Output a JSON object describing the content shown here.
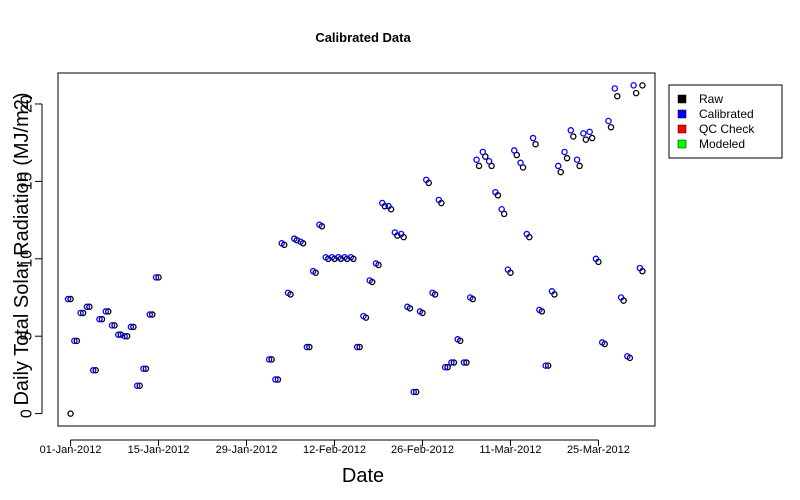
{
  "chart_data": {
    "type": "scatter",
    "title": "Calibrated Data",
    "xlabel": "Date",
    "ylabel": "Daily Total Solar Radiation (MJ/m2)",
    "xlim": [
      "2011-12-30",
      "2012-04-03"
    ],
    "ylim": [
      -0.8,
      22.0
    ],
    "x_ticks": [
      "01-Jan-2012",
      "15-Jan-2012",
      "29-Jan-2012",
      "12-Feb-2012",
      "26-Feb-2012",
      "11-Mar-2012",
      "25-Mar-2012"
    ],
    "y_ticks": [
      "0",
      "5",
      "10",
      "15",
      "20"
    ],
    "legend": {
      "position": "top-right",
      "entries": [
        {
          "label": "Raw",
          "color": "#000000"
        },
        {
          "label": "Calibrated",
          "color": "#0000ff"
        },
        {
          "label": "QC Check",
          "color": "#ff0000"
        },
        {
          "label": "Modeled",
          "color": "#00ff00"
        }
      ]
    },
    "series": [
      {
        "name": "Raw",
        "color": "#000000",
        "points": [
          [
            "2012-01-01",
            0.0
          ],
          [
            "2012-01-01",
            7.4
          ],
          [
            "2012-01-02",
            4.7
          ],
          [
            "2012-01-03",
            6.5
          ],
          [
            "2012-01-04",
            6.9
          ],
          [
            "2012-01-05",
            2.8
          ],
          [
            "2012-01-06",
            6.1
          ],
          [
            "2012-01-07",
            6.6
          ],
          [
            "2012-01-08",
            5.7
          ],
          [
            "2012-01-09",
            5.1
          ],
          [
            "2012-01-10",
            5.0
          ],
          [
            "2012-01-11",
            5.6
          ],
          [
            "2012-01-12",
            1.8
          ],
          [
            "2012-01-13",
            2.9
          ],
          [
            "2012-01-14",
            6.4
          ],
          [
            "2012-01-15",
            8.8
          ],
          [
            "2012-02-02",
            3.5
          ],
          [
            "2012-02-03",
            2.2
          ],
          [
            "2012-02-04",
            10.9
          ],
          [
            "2012-02-05",
            7.7
          ],
          [
            "2012-02-06",
            11.2
          ],
          [
            "2012-02-07",
            11.0
          ],
          [
            "2012-02-08",
            4.3
          ],
          [
            "2012-02-09",
            9.1
          ],
          [
            "2012-02-10",
            12.1
          ],
          [
            "2012-02-11",
            10.0
          ],
          [
            "2012-02-12",
            10.0
          ],
          [
            "2012-02-13",
            10.0
          ],
          [
            "2012-02-14",
            10.0
          ],
          [
            "2012-02-15",
            10.0
          ],
          [
            "2012-02-16",
            4.3
          ],
          [
            "2012-02-17",
            6.2
          ],
          [
            "2012-02-18",
            8.5
          ],
          [
            "2012-02-19",
            9.6
          ],
          [
            "2012-02-20",
            13.4
          ],
          [
            "2012-02-21",
            13.2
          ],
          [
            "2012-02-22",
            11.5
          ],
          [
            "2012-02-23",
            11.4
          ],
          [
            "2012-02-24",
            6.8
          ],
          [
            "2012-02-25",
            1.4
          ],
          [
            "2012-02-26",
            6.5
          ],
          [
            "2012-02-27",
            14.9
          ],
          [
            "2012-02-28",
            7.7
          ],
          [
            "2012-02-29",
            13.6
          ],
          [
            "2012-03-01",
            3.0
          ],
          [
            "2012-03-02",
            3.3
          ],
          [
            "2012-03-03",
            4.7
          ],
          [
            "2012-03-04",
            3.3
          ],
          [
            "2012-03-05",
            7.4
          ],
          [
            "2012-03-06",
            16.0
          ],
          [
            "2012-03-07",
            16.6
          ],
          [
            "2012-03-08",
            16.0
          ],
          [
            "2012-03-09",
            14.1
          ],
          [
            "2012-03-10",
            12.9
          ],
          [
            "2012-03-11",
            9.1
          ],
          [
            "2012-03-12",
            16.7
          ],
          [
            "2012-03-13",
            15.9
          ],
          [
            "2012-03-14",
            11.4
          ],
          [
            "2012-03-15",
            17.4
          ],
          [
            "2012-03-16",
            6.6
          ],
          [
            "2012-03-17",
            3.1
          ],
          [
            "2012-03-18",
            7.7
          ],
          [
            "2012-03-19",
            15.6
          ],
          [
            "2012-03-20",
            16.5
          ],
          [
            "2012-03-21",
            17.9
          ],
          [
            "2012-03-22",
            16.0
          ],
          [
            "2012-03-23",
            17.7
          ],
          [
            "2012-03-24",
            17.8
          ],
          [
            "2012-03-25",
            9.8
          ],
          [
            "2012-03-26",
            4.5
          ],
          [
            "2012-03-27",
            18.5
          ],
          [
            "2012-03-28",
            20.5
          ],
          [
            "2012-03-29",
            7.3
          ],
          [
            "2012-03-30",
            3.6
          ],
          [
            "2012-03-31",
            20.7
          ],
          [
            "2012-04-01",
            9.2
          ],
          [
            "2012-04-01",
            21.2
          ]
        ]
      },
      {
        "name": "Calibrated",
        "color": "#0000ff",
        "points": [
          [
            "2012-01-01",
            7.4
          ],
          [
            "2012-01-02",
            4.7
          ],
          [
            "2012-01-03",
            6.5
          ],
          [
            "2012-01-04",
            6.9
          ],
          [
            "2012-01-05",
            2.8
          ],
          [
            "2012-01-06",
            6.1
          ],
          [
            "2012-01-07",
            6.6
          ],
          [
            "2012-01-08",
            5.7
          ],
          [
            "2012-01-09",
            5.1
          ],
          [
            "2012-01-10",
            5.0
          ],
          [
            "2012-01-11",
            5.6
          ],
          [
            "2012-01-12",
            1.8
          ],
          [
            "2012-01-13",
            2.9
          ],
          [
            "2012-01-14",
            6.4
          ],
          [
            "2012-01-15",
            8.8
          ],
          [
            "2012-02-02",
            3.5
          ],
          [
            "2012-02-03",
            2.2
          ],
          [
            "2012-02-04",
            11.0
          ],
          [
            "2012-02-05",
            7.8
          ],
          [
            "2012-02-06",
            11.3
          ],
          [
            "2012-02-07",
            11.1
          ],
          [
            "2012-02-08",
            4.3
          ],
          [
            "2012-02-09",
            9.2
          ],
          [
            "2012-02-10",
            12.2
          ],
          [
            "2012-02-11",
            10.1
          ],
          [
            "2012-02-12",
            10.1
          ],
          [
            "2012-02-13",
            10.1
          ],
          [
            "2012-02-14",
            10.1
          ],
          [
            "2012-02-15",
            10.1
          ],
          [
            "2012-02-16",
            4.3
          ],
          [
            "2012-02-17",
            6.3
          ],
          [
            "2012-02-18",
            8.6
          ],
          [
            "2012-02-19",
            9.7
          ],
          [
            "2012-02-20",
            13.6
          ],
          [
            "2012-02-21",
            13.4
          ],
          [
            "2012-02-22",
            11.7
          ],
          [
            "2012-02-23",
            11.6
          ],
          [
            "2012-02-24",
            6.9
          ],
          [
            "2012-02-25",
            1.4
          ],
          [
            "2012-02-26",
            6.6
          ],
          [
            "2012-02-27",
            15.1
          ],
          [
            "2012-02-28",
            7.8
          ],
          [
            "2012-02-29",
            13.8
          ],
          [
            "2012-03-01",
            3.0
          ],
          [
            "2012-03-02",
            3.3
          ],
          [
            "2012-03-03",
            4.8
          ],
          [
            "2012-03-04",
            3.3
          ],
          [
            "2012-03-05",
            7.5
          ],
          [
            "2012-03-06",
            16.4
          ],
          [
            "2012-03-07",
            16.9
          ],
          [
            "2012-03-08",
            16.3
          ],
          [
            "2012-03-09",
            14.3
          ],
          [
            "2012-03-10",
            13.2
          ],
          [
            "2012-03-11",
            9.3
          ],
          [
            "2012-03-12",
            17.0
          ],
          [
            "2012-03-13",
            16.2
          ],
          [
            "2012-03-14",
            11.6
          ],
          [
            "2012-03-15",
            17.8
          ],
          [
            "2012-03-16",
            6.7
          ],
          [
            "2012-03-17",
            3.1
          ],
          [
            "2012-03-18",
            7.9
          ],
          [
            "2012-03-19",
            16.0
          ],
          [
            "2012-03-20",
            16.9
          ],
          [
            "2012-03-21",
            18.3
          ],
          [
            "2012-03-22",
            16.4
          ],
          [
            "2012-03-23",
            18.1
          ],
          [
            "2012-03-24",
            18.2
          ],
          [
            "2012-03-25",
            10.0
          ],
          [
            "2012-03-26",
            4.6
          ],
          [
            "2012-03-27",
            18.9
          ],
          [
            "2012-03-28",
            21.0
          ],
          [
            "2012-03-29",
            7.5
          ],
          [
            "2012-03-30",
            3.7
          ],
          [
            "2012-03-31",
            21.2
          ],
          [
            "2012-04-01",
            9.4
          ]
        ]
      }
    ]
  }
}
